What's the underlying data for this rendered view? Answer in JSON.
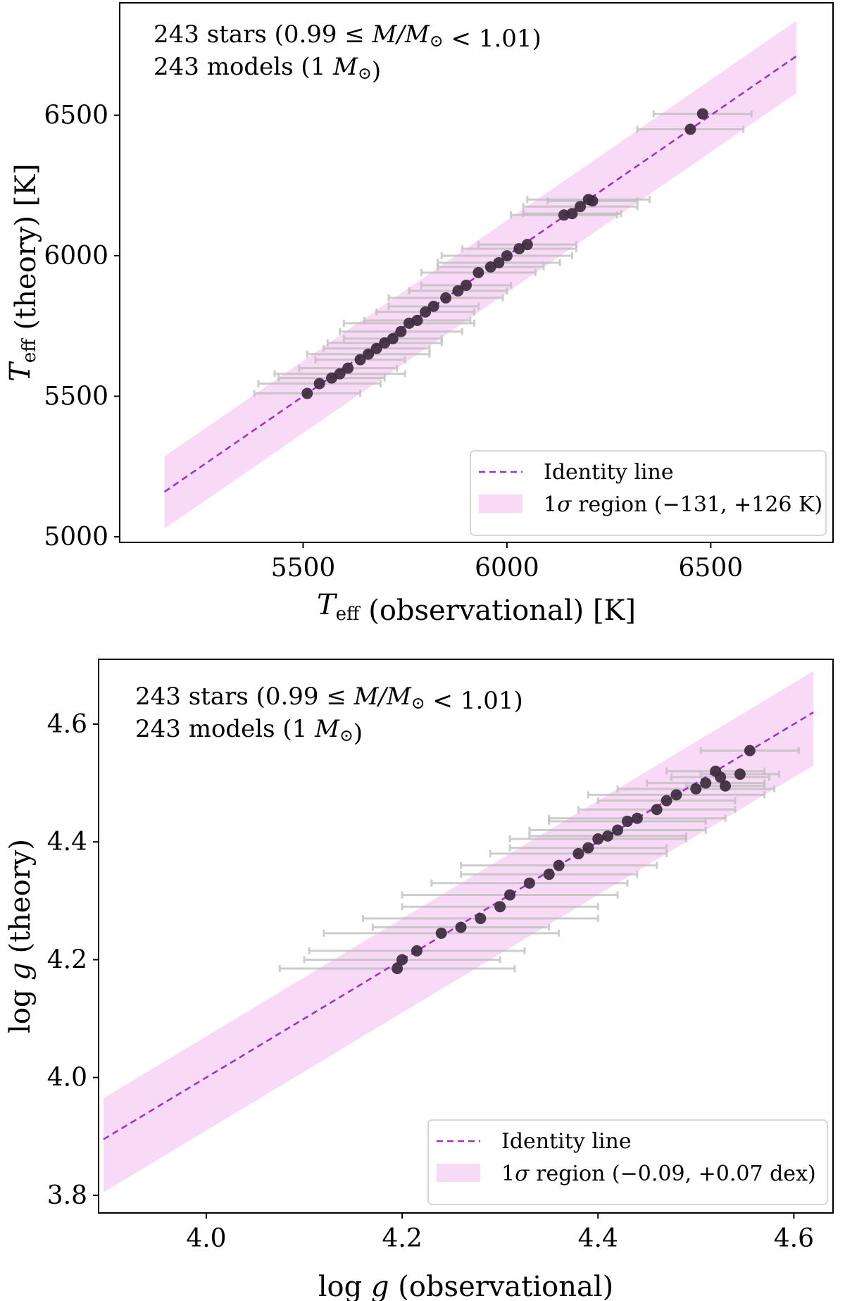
{
  "colors": {
    "identity_line": "#9b30c8",
    "band": "#f8d9f6",
    "point": "#3d2a3d",
    "errorbar": "#bdbdbd",
    "axes": "#000000"
  },
  "chart_data": [
    {
      "type": "scatter",
      "annotation": [
        "243 stars (0.99 ≤ M/M⊙ < 1.01)",
        "243 models (1 M⊙)"
      ],
      "xlabel": "T_eff (observational) [K]",
      "ylabel": "T_eff (theory) [K]",
      "xlim": [
        5050,
        6800
      ],
      "ylim": [
        4980,
        6900
      ],
      "xticks": [
        5500,
        6000,
        6500
      ],
      "yticks": [
        5000,
        5500,
        6000,
        6500
      ],
      "xtick_labels": [
        "5500",
        "6000",
        "6500"
      ],
      "ytick_labels": [
        "5000",
        "5500",
        "6000",
        "6500"
      ],
      "identity_line": [
        5160,
        6710
      ],
      "band": {
        "minus": 131,
        "plus": 126
      },
      "legend": {
        "placement": "lower-right",
        "entries": [
          "Identity line",
          "1σ region (−131, +126 K)"
        ]
      },
      "points": [
        [
          5510,
          5510,
          130
        ],
        [
          5540,
          5545,
          150
        ],
        [
          5570,
          5565,
          130
        ],
        [
          5590,
          5580,
          160
        ],
        [
          5610,
          5600,
          120
        ],
        [
          5640,
          5630,
          110
        ],
        [
          5660,
          5650,
          150
        ],
        [
          5680,
          5670,
          130
        ],
        [
          5700,
          5690,
          140
        ],
        [
          5720,
          5705,
          120
        ],
        [
          5740,
          5730,
          150
        ],
        [
          5760,
          5760,
          160
        ],
        [
          5780,
          5770,
          130
        ],
        [
          5800,
          5800,
          120
        ],
        [
          5820,
          5820,
          110
        ],
        [
          5850,
          5850,
          140
        ],
        [
          5880,
          5875,
          120
        ],
        [
          5900,
          5895,
          110
        ],
        [
          5930,
          5940,
          140
        ],
        [
          5960,
          5960,
          130
        ],
        [
          5980,
          5975,
          150
        ],
        [
          6000,
          6000,
          160
        ],
        [
          6030,
          6025,
          140
        ],
        [
          6050,
          6040,
          120
        ],
        [
          6140,
          6145,
          130
        ],
        [
          6160,
          6150,
          120
        ],
        [
          6180,
          6175,
          140
        ],
        [
          6200,
          6200,
          150
        ],
        [
          6210,
          6195,
          110
        ],
        [
          6450,
          6450,
          130
        ],
        [
          6480,
          6505,
          120
        ]
      ]
    },
    {
      "type": "scatter",
      "annotation": [
        "243 stars (0.99 ≤ M/M⊙ < 1.01)",
        "243 models (1 M⊙)"
      ],
      "xlabel": "log g (observational)",
      "ylabel": "log g (theory)",
      "xlim": [
        3.89,
        4.64
      ],
      "ylim": [
        3.77,
        4.71
      ],
      "xticks": [
        4.0,
        4.2,
        4.4,
        4.6
      ],
      "yticks": [
        3.8,
        4.0,
        4.2,
        4.4,
        4.6
      ],
      "xtick_labels": [
        "4.0",
        "4.2",
        "4.4",
        "4.6"
      ],
      "ytick_labels": [
        "3.8",
        "4.0",
        "4.2",
        "4.4",
        "4.6"
      ],
      "identity_line": [
        3.895,
        4.62
      ],
      "band": {
        "minus": 0.09,
        "plus": 0.07
      },
      "legend": {
        "placement": "lower-right",
        "entries": [
          "Identity line",
          "1σ region (−0.09, +0.07 dex)"
        ]
      },
      "points": [
        [
          4.195,
          4.185,
          0.12
        ],
        [
          4.2,
          4.2,
          0.1
        ],
        [
          4.215,
          4.215,
          0.11
        ],
        [
          4.24,
          4.245,
          0.12
        ],
        [
          4.26,
          4.255,
          0.09
        ],
        [
          4.28,
          4.27,
          0.12
        ],
        [
          4.3,
          4.29,
          0.1
        ],
        [
          4.31,
          4.31,
          0.11
        ],
        [
          4.33,
          4.33,
          0.1
        ],
        [
          4.35,
          4.345,
          0.09
        ],
        [
          4.36,
          4.36,
          0.1
        ],
        [
          4.38,
          4.38,
          0.09
        ],
        [
          4.39,
          4.39,
          0.08
        ],
        [
          4.4,
          4.405,
          0.09
        ],
        [
          4.41,
          4.41,
          0.08
        ],
        [
          4.42,
          4.42,
          0.09
        ],
        [
          4.43,
          4.435,
          0.08
        ],
        [
          4.44,
          4.44,
          0.09
        ],
        [
          4.46,
          4.455,
          0.08
        ],
        [
          4.47,
          4.47,
          0.07
        ],
        [
          4.48,
          4.48,
          0.09
        ],
        [
          4.5,
          4.49,
          0.08
        ],
        [
          4.51,
          4.5,
          0.06
        ],
        [
          4.52,
          4.52,
          0.05
        ],
        [
          4.525,
          4.51,
          0.05
        ],
        [
          4.53,
          4.495,
          0.04
        ],
        [
          4.545,
          4.515,
          0.04
        ],
        [
          4.555,
          4.555,
          0.05
        ]
      ]
    }
  ]
}
